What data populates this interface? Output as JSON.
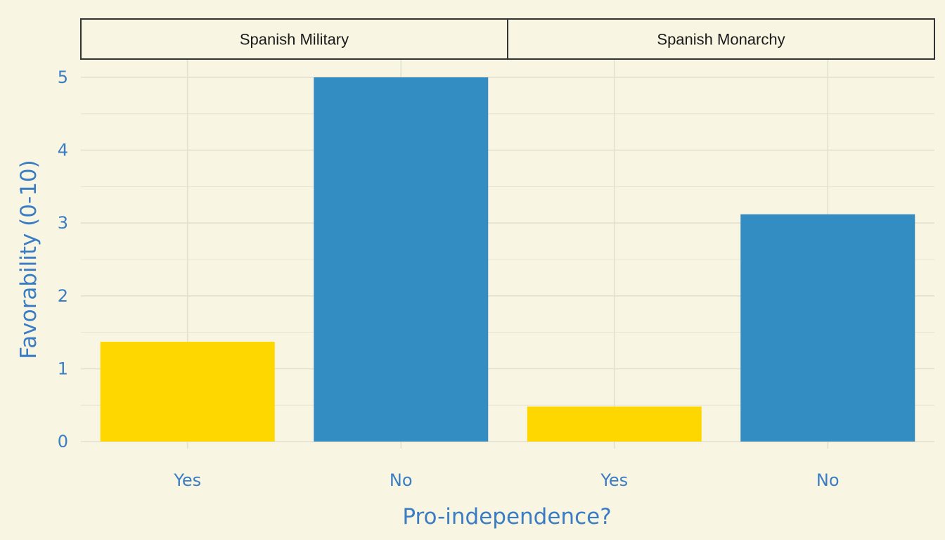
{
  "chart_data": {
    "type": "bar",
    "xlabel": "Pro-independence?",
    "ylabel": "Favorability (0-10)",
    "ylim": [
      0,
      5.15
    ],
    "yticks": [
      0,
      1,
      2,
      3,
      4,
      5
    ],
    "grid": true,
    "legend": "none",
    "colors": {
      "Yes": "#ffd700",
      "No": "#348dc2"
    },
    "panels": [
      {
        "title": "Spanish Military",
        "categories": [
          "Yes",
          "No"
        ],
        "values": [
          1.37,
          5.0
        ]
      },
      {
        "title": "Spanish Monarchy",
        "categories": [
          "Yes",
          "No"
        ],
        "values": [
          0.48,
          3.12
        ]
      }
    ]
  }
}
